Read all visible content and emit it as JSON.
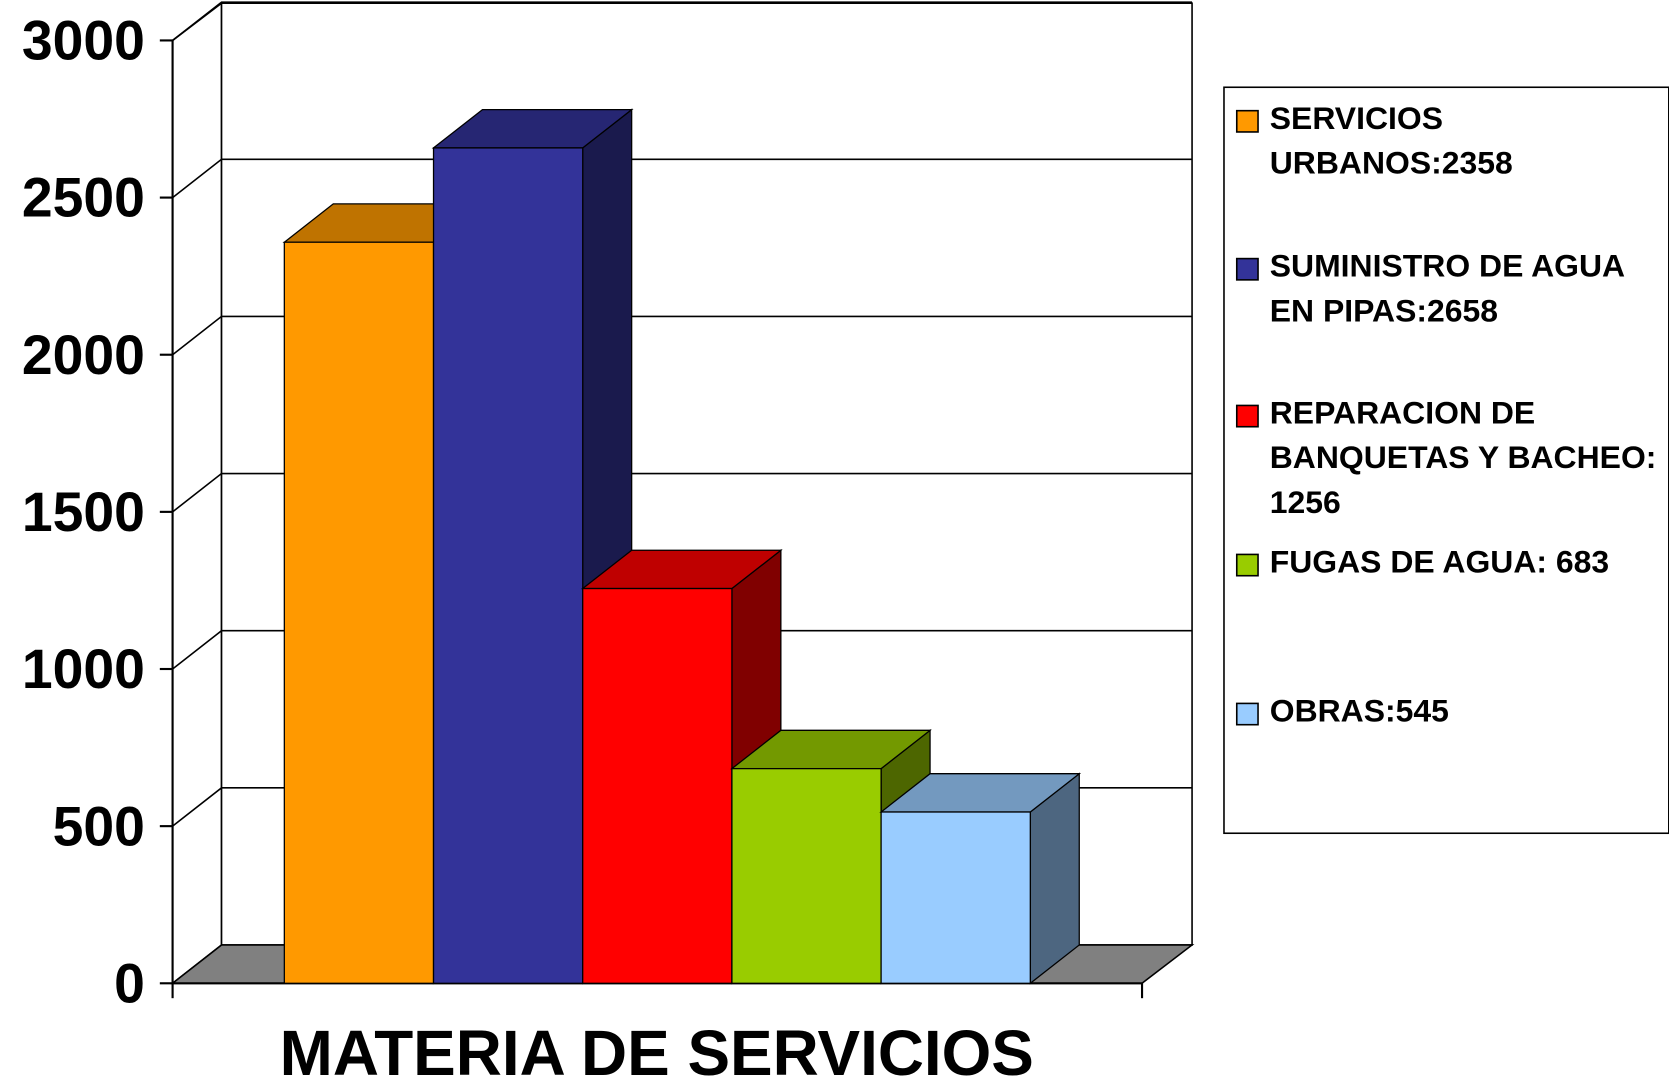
{
  "chart_data": {
    "type": "bar3d",
    "x_label": "MATERIA DE SERVICIOS",
    "series": [
      {
        "name": "SERVICIOS URBANOS:2358",
        "color": "#ff9900",
        "values": [
          2358
        ]
      },
      {
        "name": "SUMINISTRO DE AGUA EN PIPAS:2658",
        "color": "#333399",
        "values": [
          2658
        ]
      },
      {
        "name": "REPARACION DE BANQUETAS Y BACHEO: 1256",
        "color": "#ff0000",
        "values": [
          1256
        ]
      },
      {
        "name": "FUGAS DE AGUA: 683",
        "color": "#99cc00",
        "values": [
          683
        ]
      },
      {
        "name": "OBRAS:545",
        "color": "#99ccff",
        "values": [
          545
        ]
      }
    ],
    "ylim": [
      0,
      3000
    ],
    "yticks": [
      0,
      500,
      1000,
      1500,
      2000,
      2500,
      3000
    ],
    "grid": true,
    "legend": "right"
  }
}
